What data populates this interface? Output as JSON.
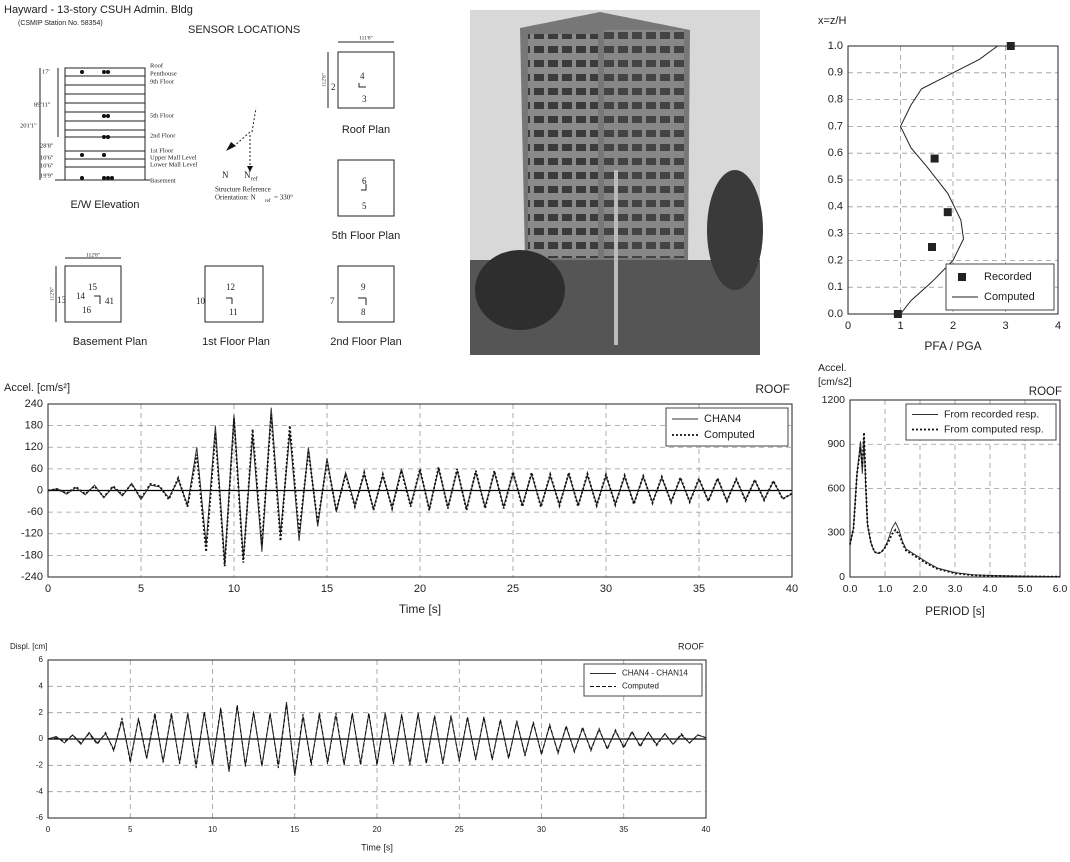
{
  "header": {
    "title": "Hayward - 13-story CSUH Admin. Bldg",
    "station": "(CSMIP Station No. 58354)",
    "heading": "SENSOR LOCATIONS"
  },
  "elevation": {
    "levels": [
      "Roof",
      "Penthouse",
      "9th Floor",
      "5th Floor",
      "2nd Floor",
      "1st Floor",
      "Upper Mall Level",
      "Lower Mall Level",
      "Basement"
    ],
    "dims": [
      "17'",
      "89'11\"",
      "201'1\"",
      "28'8\"",
      "10'6\"",
      "10'6\"",
      "19'9\""
    ],
    "caption": "E/W Elevation"
  },
  "orientation": {
    "n": "N",
    "nref": "N",
    "nref_sub": "ref",
    "note1": "Structure Reference",
    "note2": "Orientation: N",
    "note2_sub": "ref",
    "note2_end": " = 330°"
  },
  "plans": [
    {
      "caption": "Roof Plan",
      "dim": "111'8\"",
      "side": "112'8\"",
      "sensors": [
        "4",
        "2",
        "3"
      ]
    },
    {
      "caption": "5th Floor Plan",
      "sensors": [
        "6",
        "5"
      ]
    },
    {
      "caption": "Basement Plan",
      "dim": "112'8\"",
      "side": "112'8\"",
      "sensors": [
        "15",
        "14",
        "13",
        "16",
        "41"
      ]
    },
    {
      "caption": "1st Floor Plan",
      "sensors": [
        "12",
        "10",
        "11"
      ]
    },
    {
      "caption": "2nd Floor Plan",
      "sensors": [
        "9",
        "7",
        "8"
      ]
    }
  ],
  "chart_data": [
    {
      "type": "line",
      "title": "x=z/H",
      "xlabel": "PFA / PGA",
      "xlim": [
        0,
        4
      ],
      "xticks": [
        0,
        1,
        2,
        3,
        4
      ],
      "ylim": [
        0,
        1
      ],
      "yticks": [
        {
          "value": 0,
          "label": "0.0"
        },
        0.1,
        0.2,
        0.3,
        0.4,
        0.5,
        0.6,
        0.7,
        0.8,
        0.9,
        {
          "value": 1,
          "label": "1.0"
        }
      ],
      "grid": true,
      "legend": "lower right",
      "series": [
        {
          "name": "Recorded",
          "color": "#222222",
          "marker": "square",
          "x": [
            3.1,
            1.65,
            1.9,
            1.6,
            0.95
          ],
          "values": [
            1.0,
            0.58,
            0.38,
            0.25,
            0.0
          ]
        },
        {
          "name": "Computed",
          "color": "#222222",
          "x": [
            1,
            1.2,
            1.6,
            2.0,
            2.2,
            2.15,
            1.9,
            1.5,
            1.2,
            1.0,
            1.2,
            1.4,
            2.0,
            2.5,
            2.85
          ],
          "values": [
            0,
            0.05,
            0.12,
            0.2,
            0.28,
            0.35,
            0.45,
            0.55,
            0.62,
            0.7,
            0.78,
            0.84,
            0.9,
            0.95,
            1.0
          ]
        }
      ]
    },
    {
      "type": "line",
      "title": "Accel. [cm/s²]",
      "annotation": "ROOF",
      "xlabel": "Time [s]",
      "xlim": [
        0,
        40
      ],
      "xticks": [
        0,
        5,
        10,
        15,
        20,
        25,
        30,
        35,
        40
      ],
      "ylim": [
        -240,
        240
      ],
      "yticks": [
        -240,
        -180,
        -120,
        -60,
        0,
        60,
        120,
        180,
        240
      ],
      "grid": true,
      "legend": "upper right",
      "x": [
        0,
        0.5,
        1,
        1.5,
        2,
        2.5,
        3,
        3.5,
        4,
        4.5,
        5,
        5.5,
        6,
        6.5,
        7,
        7.5,
        8,
        8.5,
        9,
        9.5,
        10,
        10.5,
        11,
        11.5,
        12,
        12.5,
        13,
        13.5,
        14,
        14.5,
        15,
        15.5,
        16,
        16.5,
        17,
        17.5,
        18,
        18.5,
        19,
        19.5,
        20,
        20.5,
        21,
        21.5,
        22,
        22.5,
        23,
        23.5,
        24,
        24.5,
        25,
        25.5,
        26,
        26.5,
        27,
        27.5,
        28,
        28.5,
        29,
        29.5,
        30,
        30.5,
        31,
        31.5,
        32,
        32.5,
        33,
        33.5,
        34,
        34.5,
        35,
        35.5,
        36,
        36.5,
        37,
        37.5,
        38,
        38.5,
        39,
        39.5,
        40
      ],
      "series": [
        {
          "name": "CHAN4",
          "color": "#333333",
          "values": [
            0,
            5,
            -10,
            8,
            -12,
            15,
            -20,
            10,
            -15,
            20,
            -25,
            15,
            10,
            -20,
            30,
            -40,
            120,
            -150,
            180,
            -200,
            210,
            -190,
            150,
            -170,
            230,
            -120,
            160,
            -140,
            120,
            -100,
            90,
            -60,
            50,
            -40,
            45,
            -50,
            40,
            -45,
            60,
            -40,
            55,
            -50,
            60,
            -45,
            55,
            -50,
            50,
            -45,
            50,
            -45,
            48,
            -40,
            45,
            -42,
            40,
            -38,
            45,
            -40,
            42,
            -38,
            40,
            -36,
            38,
            -35,
            38,
            -32,
            35,
            -30,
            33,
            -30,
            30,
            -28,
            32,
            -28,
            30,
            -25,
            28,
            -25,
            25,
            -22,
            -10
          ]
        },
        {
          "name": "Computed",
          "color": "#111111",
          "dash": "dotted",
          "values": [
            0,
            4,
            -8,
            10,
            -10,
            12,
            -18,
            12,
            -12,
            18,
            -22,
            18,
            12,
            -25,
            35,
            -45,
            100,
            -170,
            160,
            -210,
            200,
            -200,
            170,
            -150,
            210,
            -140,
            180,
            -120,
            110,
            -90,
            80,
            -55,
            45,
            -45,
            50,
            -55,
            45,
            -50,
            55,
            -45,
            60,
            -55,
            65,
            -50,
            60,
            -55,
            55,
            -50,
            55,
            -50,
            52,
            -45,
            50,
            -46,
            45,
            -42,
            50,
            -44,
            46,
            -42,
            44,
            -40,
            42,
            -38,
            40,
            -35,
            38,
            -33,
            36,
            -32,
            33,
            -30,
            34,
            -30,
            32,
            -28,
            30,
            -27,
            27,
            -24,
            -8
          ]
        }
      ]
    },
    {
      "type": "line",
      "title": "Accel.",
      "subtitle": "[cm/s2]",
      "annotation": "ROOF",
      "xlabel": "PERIOD [s]",
      "xlim": [
        0,
        6
      ],
      "xticks": [
        {
          "value": 0,
          "label": "0.0"
        },
        {
          "value": 1,
          "label": "1.0"
        },
        {
          "value": 2,
          "label": "2.0"
        },
        {
          "value": 3,
          "label": "3.0"
        },
        {
          "value": 4,
          "label": "4.0"
        },
        {
          "value": 5,
          "label": "5.0"
        },
        {
          "value": 6,
          "label": "6.0"
        }
      ],
      "ylim": [
        0,
        1200
      ],
      "yticks": [
        0,
        300,
        600,
        900,
        1200
      ],
      "grid": true,
      "legend": "upper right",
      "x": [
        0,
        0.1,
        0.2,
        0.3,
        0.35,
        0.4,
        0.45,
        0.5,
        0.6,
        0.7,
        0.8,
        0.9,
        1.0,
        1.1,
        1.2,
        1.3,
        1.4,
        1.5,
        1.6,
        1.8,
        2.0,
        2.2,
        2.5,
        3.0,
        3.5,
        4.0,
        5.0,
        6.0
      ],
      "series": [
        {
          "name": "From recorded resp.",
          "color": "#333333",
          "values": [
            220,
            330,
            700,
            920,
            700,
            950,
            600,
            350,
            230,
            170,
            160,
            170,
            200,
            260,
            330,
            370,
            320,
            240,
            190,
            160,
            130,
            100,
            60,
            30,
            15,
            10,
            5,
            3
          ]
        },
        {
          "name": "From computed resp.",
          "color": "#111111",
          "dash": "dotted",
          "values": [
            220,
            330,
            700,
            880,
            750,
            980,
            620,
            360,
            230,
            170,
            160,
            170,
            200,
            240,
            290,
            320,
            290,
            230,
            180,
            150,
            120,
            90,
            55,
            25,
            12,
            8,
            4,
            2
          ]
        }
      ]
    },
    {
      "type": "line",
      "title": "Displ. [cm]",
      "annotation": "ROOF",
      "xlabel": "Time [s]",
      "xlim": [
        0,
        40
      ],
      "xticks": [
        0,
        5,
        10,
        15,
        20,
        25,
        30,
        35,
        40
      ],
      "ylim": [
        -6,
        6
      ],
      "yticks": [
        -6,
        -4,
        -2,
        0,
        2,
        4,
        6
      ],
      "grid": true,
      "legend": "upper right",
      "x": [
        0,
        0.5,
        1,
        1.5,
        2,
        2.5,
        3,
        3.5,
        4,
        4.5,
        5,
        5.5,
        6,
        6.5,
        7,
        7.5,
        8,
        8.5,
        9,
        9.5,
        10,
        10.5,
        11,
        11.5,
        12,
        12.5,
        13,
        13.5,
        14,
        14.5,
        15,
        15.5,
        16,
        16.5,
        17,
        17.5,
        18,
        18.5,
        19,
        19.5,
        20,
        20.5,
        21,
        21.5,
        22,
        22.5,
        23,
        23.5,
        24,
        24.5,
        25,
        25.5,
        26,
        26.5,
        27,
        27.5,
        28,
        28.5,
        29,
        29.5,
        30,
        30.5,
        31,
        31.5,
        32,
        32.5,
        33,
        33.5,
        34,
        34.5,
        35,
        35.5,
        36,
        36.5,
        37,
        37.5,
        38,
        38.5,
        39,
        39.5,
        40
      ],
      "series": [
        {
          "name": "CHAN4 - CHAN14",
          "color": "#333333",
          "values": [
            0,
            0.2,
            -0.3,
            0.3,
            -0.4,
            0.5,
            -0.3,
            0.4,
            -0.8,
            1.4,
            -1.6,
            1.5,
            -1.5,
            1.8,
            -1.7,
            1.8,
            -1.8,
            1.9,
            -2.0,
            2.0,
            -1.9,
            2.2,
            -2.5,
            2.5,
            -2.0,
            2.0,
            -2.0,
            1.9,
            -2.0,
            2.8,
            -2.8,
            1.7,
            -1.8,
            1.8,
            -1.7,
            1.8,
            -1.9,
            1.9,
            -1.8,
            1.9,
            -1.9,
            1.9,
            -1.8,
            1.8,
            -1.9,
            1.9,
            -1.8,
            1.7,
            -1.8,
            1.7,
            -1.6,
            1.6,
            -1.5,
            1.6,
            -1.5,
            1.4,
            -1.4,
            1.3,
            -1.2,
            1.2,
            -1.1,
            1.0,
            -1.0,
            0.9,
            -0.9,
            0.8,
            -0.8,
            0.7,
            -0.7,
            0.6,
            -0.6,
            0.5,
            -0.5,
            0.5,
            -0.4,
            0.4,
            -0.4,
            0.3,
            -0.3,
            0.3,
            0.1
          ]
        },
        {
          "name": "Computed",
          "color": "#111111",
          "dash": "dashed",
          "values": [
            0,
            0.1,
            -0.2,
            0.3,
            -0.3,
            0.4,
            -0.4,
            0.5,
            -0.9,
            1.6,
            -1.8,
            1.6,
            -1.4,
            2.0,
            -1.8,
            2.0,
            -1.9,
            2.0,
            -2.2,
            2.1,
            -2.0,
            2.4,
            -2.3,
            2.6,
            -2.1,
            2.1,
            -2.1,
            2.0,
            -2.2,
            2.6,
            -2.6,
            1.9,
            -2.0,
            2.0,
            -1.9,
            2.0,
            -2.0,
            2.0,
            -2.0,
            2.0,
            -2.0,
            2.0,
            -1.9,
            1.9,
            -2.0,
            2.0,
            -1.9,
            1.8,
            -1.9,
            1.8,
            -1.7,
            1.7,
            -1.6,
            1.7,
            -1.6,
            1.5,
            -1.5,
            1.4,
            -1.3,
            1.3,
            -1.2,
            1.1,
            -1.1,
            1.0,
            -1.0,
            0.9,
            -0.9,
            0.8,
            -0.8,
            0.7,
            -0.7,
            0.6,
            -0.6,
            0.5,
            -0.5,
            0.4,
            -0.4,
            0.4,
            -0.3,
            0.3,
            0.1
          ]
        }
      ]
    }
  ]
}
